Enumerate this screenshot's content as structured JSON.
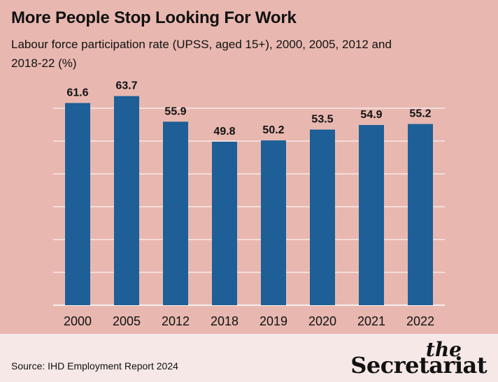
{
  "chart_data": {
    "type": "bar",
    "title": "More People Stop Looking For Work",
    "subtitle": "Labour force participation rate (UPSS, aged 15+), 2000, 2005, 2012 and 2018-22 (%)",
    "categories": [
      "2000",
      "2005",
      "2012",
      "2018",
      "2019",
      "2020",
      "2021",
      "2022"
    ],
    "values": [
      61.6,
      63.7,
      55.9,
      49.8,
      50.2,
      53.5,
      54.9,
      55.2
    ],
    "data_labels": [
      "61.6",
      "63.7",
      "55.9",
      "49.8",
      "50.2",
      "53.5",
      "54.9",
      "55.2"
    ],
    "ylim": [
      0,
      70
    ],
    "gridlines": [
      0,
      10,
      20,
      30,
      40,
      50,
      60
    ],
    "grid": true,
    "bar_color": "#1d5f96",
    "grid_color": "#ffffff"
  },
  "footer": {
    "source": "Source: IHD Employment Report 2024",
    "logo_the": "the",
    "logo_name": "Secretariat"
  },
  "colors": {
    "background": "#e8b8b0",
    "footer_background": "#f5e8e6"
  }
}
